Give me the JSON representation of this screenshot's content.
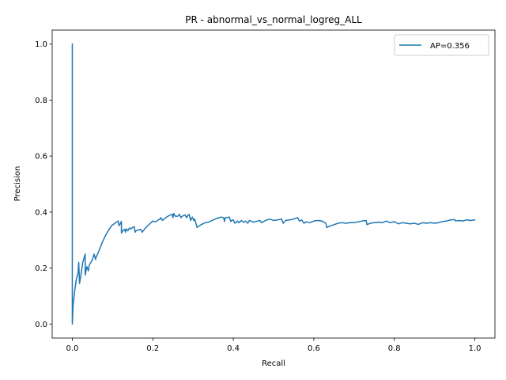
{
  "chart_data": {
    "type": "line",
    "title": "PR - abnormal_vs_normal_logreg_ALL",
    "xlabel": "Recall",
    "ylabel": "Precision",
    "xlim": [
      -0.05,
      1.05
    ],
    "ylim": [
      -0.05,
      1.05
    ],
    "xticks": [
      0.0,
      0.2,
      0.4,
      0.6,
      0.8,
      1.0
    ],
    "yticks": [
      0.0,
      0.2,
      0.4,
      0.6,
      0.8,
      1.0
    ],
    "xtick_labels": [
      "0.0",
      "0.2",
      "0.4",
      "0.6",
      "0.8",
      "1.0"
    ],
    "ytick_labels": [
      "0.0",
      "0.2",
      "0.4",
      "0.6",
      "0.8",
      "1.0"
    ],
    "grid": false,
    "legend_position": "top-right",
    "series": [
      {
        "name": "AP=0.356",
        "color": "#1f77b4",
        "x": [
          0.0,
          0.0,
          0.0,
          0.002,
          0.006,
          0.01,
          0.014,
          0.016,
          0.018,
          0.022,
          0.026,
          0.032,
          0.032,
          0.036,
          0.04,
          0.042,
          0.046,
          0.05,
          0.054,
          0.058,
          0.058,
          0.066,
          0.074,
          0.082,
          0.09,
          0.098,
          0.106,
          0.114,
          0.116,
          0.118,
          0.122,
          0.122,
          0.126,
          0.13,
          0.132,
          0.134,
          0.138,
          0.142,
          0.146,
          0.15,
          0.154,
          0.156,
          0.158,
          0.164,
          0.17,
          0.174,
          0.176,
          0.18,
          0.19,
          0.2,
          0.206,
          0.214,
          0.218,
          0.22,
          0.224,
          0.234,
          0.244,
          0.248,
          0.25,
          0.252,
          0.256,
          0.262,
          0.266,
          0.27,
          0.272,
          0.28,
          0.284,
          0.288,
          0.29,
          0.294,
          0.298,
          0.302,
          0.304,
          0.31,
          0.32,
          0.33,
          0.34,
          0.35,
          0.36,
          0.37,
          0.376,
          0.378,
          0.38,
          0.39,
          0.394,
          0.396,
          0.4,
          0.404,
          0.41,
          0.414,
          0.42,
          0.426,
          0.43,
          0.436,
          0.44,
          0.45,
          0.46,
          0.466,
          0.47,
          0.48,
          0.49,
          0.5,
          0.51,
          0.52,
          0.524,
          0.53,
          0.54,
          0.55,
          0.56,
          0.564,
          0.57,
          0.576,
          0.58,
          0.59,
          0.6,
          0.61,
          0.62,
          0.63,
          0.632,
          0.64,
          0.65,
          0.66,
          0.67,
          0.68,
          0.69,
          0.7,
          0.71,
          0.72,
          0.73,
          0.732,
          0.74,
          0.75,
          0.76,
          0.77,
          0.78,
          0.79,
          0.8,
          0.81,
          0.82,
          0.83,
          0.84,
          0.85,
          0.86,
          0.87,
          0.88,
          0.89,
          0.9,
          0.91,
          0.92,
          0.93,
          0.94,
          0.95,
          0.952,
          0.96,
          0.97,
          0.98,
          0.99,
          1.0
        ],
        "y": [
          1.0,
          0.5,
          0.0,
          0.07,
          0.12,
          0.16,
          0.18,
          0.22,
          0.145,
          0.18,
          0.22,
          0.25,
          0.175,
          0.205,
          0.19,
          0.21,
          0.22,
          0.23,
          0.25,
          0.23,
          0.235,
          0.26,
          0.29,
          0.315,
          0.335,
          0.352,
          0.36,
          0.368,
          0.352,
          0.355,
          0.367,
          0.325,
          0.335,
          0.338,
          0.328,
          0.34,
          0.333,
          0.343,
          0.34,
          0.345,
          0.348,
          0.328,
          0.333,
          0.336,
          0.338,
          0.328,
          0.333,
          0.34,
          0.355,
          0.368,
          0.365,
          0.372,
          0.375,
          0.38,
          0.37,
          0.382,
          0.39,
          0.392,
          0.38,
          0.395,
          0.385,
          0.385,
          0.392,
          0.38,
          0.384,
          0.39,
          0.38,
          0.39,
          0.392,
          0.37,
          0.382,
          0.37,
          0.375,
          0.345,
          0.355,
          0.362,
          0.365,
          0.372,
          0.378,
          0.382,
          0.38,
          0.366,
          0.38,
          0.382,
          0.366,
          0.37,
          0.372,
          0.36,
          0.368,
          0.362,
          0.37,
          0.363,
          0.368,
          0.36,
          0.37,
          0.364,
          0.368,
          0.37,
          0.362,
          0.37,
          0.375,
          0.37,
          0.372,
          0.375,
          0.36,
          0.37,
          0.372,
          0.375,
          0.38,
          0.368,
          0.372,
          0.36,
          0.365,
          0.362,
          0.368,
          0.37,
          0.368,
          0.36,
          0.345,
          0.35,
          0.355,
          0.36,
          0.362,
          0.36,
          0.362,
          0.362,
          0.365,
          0.368,
          0.37,
          0.355,
          0.36,
          0.362,
          0.364,
          0.362,
          0.368,
          0.362,
          0.366,
          0.358,
          0.362,
          0.36,
          0.358,
          0.36,
          0.356,
          0.362,
          0.36,
          0.362,
          0.36,
          0.362,
          0.366,
          0.368,
          0.372,
          0.373,
          0.368,
          0.37,
          0.368,
          0.372,
          0.37,
          0.372
        ]
      }
    ]
  }
}
